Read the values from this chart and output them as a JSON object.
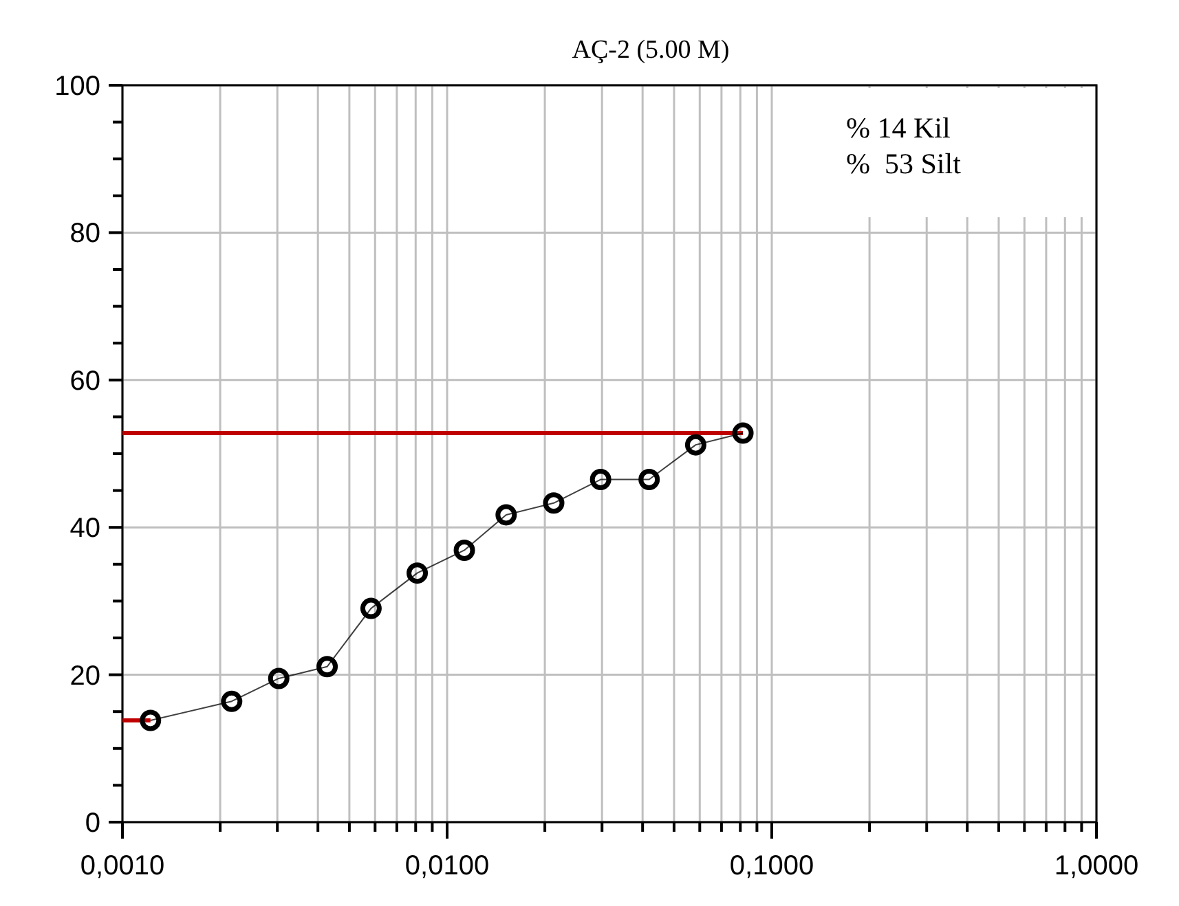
{
  "chart_data": {
    "type": "line",
    "title": "AÇ-2 (5.00 M)",
    "log": "x",
    "grid": true,
    "marker": "circle",
    "line_style": "solid",
    "xlim": [
      0.001,
      1
    ],
    "xticks": [
      {
        "value": 0.001,
        "label": "0,0010"
      },
      {
        "value": 0.002,
        "label": null
      },
      {
        "value": 0.003,
        "label": null
      },
      {
        "value": 0.004,
        "label": null
      },
      {
        "value": 0.005,
        "label": null
      },
      {
        "value": 0.006,
        "label": null
      },
      {
        "value": 0.007,
        "label": null
      },
      {
        "value": 0.008,
        "label": null
      },
      {
        "value": 0.009,
        "label": null
      },
      {
        "value": 0.01,
        "label": "0,0100"
      },
      {
        "value": 0.02,
        "label": null
      },
      {
        "value": 0.03,
        "label": null
      },
      {
        "value": 0.04,
        "label": null
      },
      {
        "value": 0.05,
        "label": null
      },
      {
        "value": 0.06,
        "label": null
      },
      {
        "value": 0.07,
        "label": null
      },
      {
        "value": 0.08,
        "label": null
      },
      {
        "value": 0.09,
        "label": null
      },
      {
        "value": 0.1,
        "label": "0,1000"
      },
      {
        "value": 0.2,
        "label": null
      },
      {
        "value": 0.3,
        "label": null
      },
      {
        "value": 0.4,
        "label": null
      },
      {
        "value": 0.5,
        "label": null
      },
      {
        "value": 0.6,
        "label": null
      },
      {
        "value": 0.7,
        "label": null
      },
      {
        "value": 0.8,
        "label": null
      },
      {
        "value": 0.9,
        "label": null
      },
      {
        "value": 1,
        "label": "1,0000"
      }
    ],
    "ylim": [
      0,
      100
    ],
    "yticks": [
      0,
      {
        "value": 5,
        "label": null
      },
      {
        "value": 10,
        "label": null
      },
      {
        "value": 15,
        "label": null
      },
      20,
      {
        "value": 25,
        "label": null
      },
      {
        "value": 30,
        "label": null
      },
      {
        "value": 35,
        "label": null
      },
      40,
      {
        "value": 45,
        "label": null
      },
      {
        "value": 50,
        "label": null
      },
      {
        "value": 55,
        "label": null
      },
      60,
      {
        "value": 65,
        "label": null
      },
      {
        "value": 70,
        "label": null
      },
      {
        "value": 75,
        "label": null
      },
      80,
      {
        "value": 85,
        "label": null
      },
      {
        "value": 90,
        "label": null
      },
      {
        "value": 95,
        "label": null
      },
      100
    ],
    "series": [
      {
        "type": "line",
        "color": "#c00000",
        "marker": "none",
        "x": [
          0.001,
          0.0815
        ],
        "values": [
          52.8,
          52.8
        ]
      },
      {
        "type": "line",
        "color": "#c00000",
        "marker": "none",
        "x": [
          0.001,
          0.00122
        ],
        "values": [
          13.8,
          13.8
        ]
      },
      {
        "color": "#000000",
        "x": [
          0.00122,
          0.00217,
          0.00303,
          0.00427,
          0.00583,
          0.00809,
          0.0113,
          0.0152,
          0.0213,
          0.0297,
          0.0419,
          0.0583,
          0.0815
        ],
        "values": [
          13.8,
          16.4,
          19.5,
          21.1,
          29.0,
          33.8,
          36.9,
          41.7,
          43.3,
          46.5,
          46.5,
          51.2,
          52.8
        ]
      }
    ],
    "annotations": [
      "% 14 Kil",
      "%  53 Silt"
    ]
  }
}
